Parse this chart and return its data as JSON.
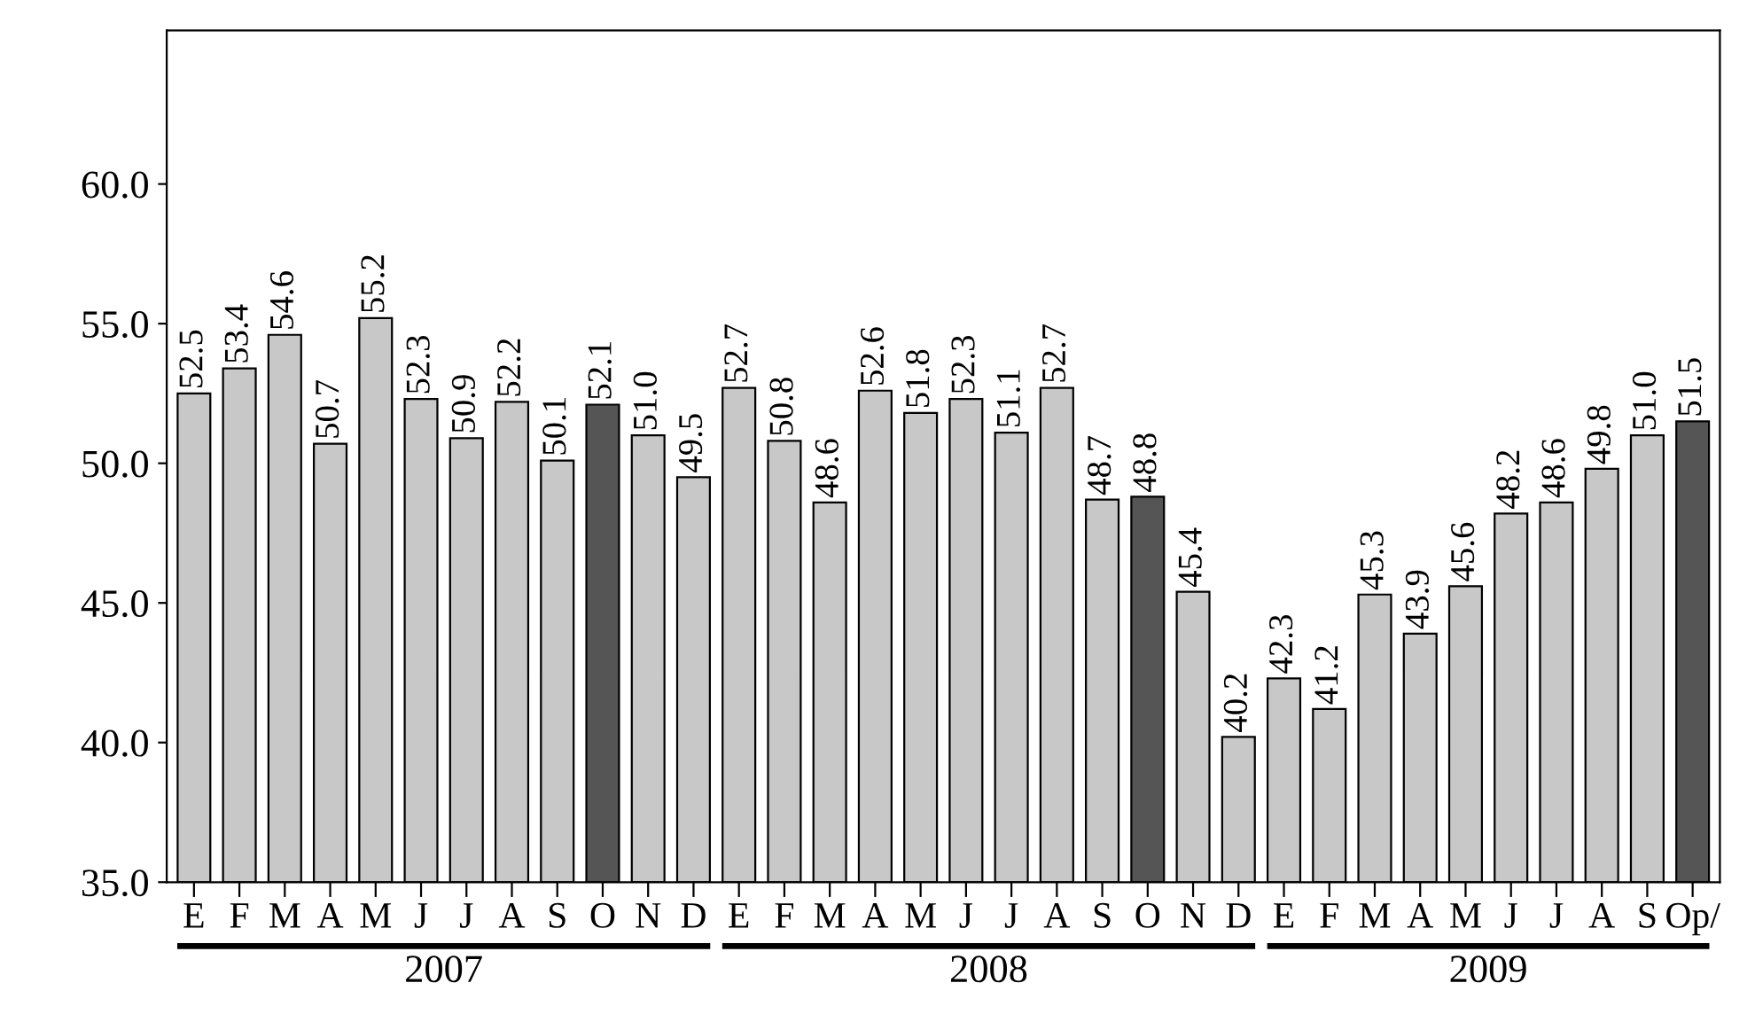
{
  "chart_data": {
    "type": "bar",
    "categories": [
      "E",
      "F",
      "M",
      "A",
      "M",
      "J",
      "J",
      "A",
      "S",
      "O",
      "N",
      "D",
      "E",
      "F",
      "M",
      "A",
      "M",
      "J",
      "J",
      "A",
      "S",
      "O",
      "N",
      "D",
      "E",
      "F",
      "M",
      "A",
      "M",
      "J",
      "J",
      "A",
      "S",
      "Op/"
    ],
    "values": [
      52.5,
      53.4,
      54.6,
      50.7,
      55.2,
      52.3,
      50.9,
      52.2,
      50.1,
      52.1,
      51.0,
      49.5,
      52.7,
      50.8,
      48.6,
      52.6,
      51.8,
      52.3,
      51.1,
      52.7,
      48.7,
      48.8,
      45.4,
      40.2,
      42.3,
      41.2,
      45.3,
      43.9,
      45.6,
      48.2,
      48.6,
      49.8,
      51.0,
      51.5
    ],
    "colors": [
      "#c8c8c8",
      "#c8c8c8",
      "#c8c8c8",
      "#c8c8c8",
      "#c8c8c8",
      "#c8c8c8",
      "#c8c8c8",
      "#c8c8c8",
      "#c8c8c8",
      "#555555",
      "#c8c8c8",
      "#c8c8c8",
      "#c8c8c8",
      "#c8c8c8",
      "#c8c8c8",
      "#c8c8c8",
      "#c8c8c8",
      "#c8c8c8",
      "#c8c8c8",
      "#c8c8c8",
      "#c8c8c8",
      "#555555",
      "#c8c8c8",
      "#c8c8c8",
      "#c8c8c8",
      "#c8c8c8",
      "#c8c8c8",
      "#c8c8c8",
      "#c8c8c8",
      "#c8c8c8",
      "#c8c8c8",
      "#c8c8c8",
      "#c8c8c8",
      "#555555"
    ],
    "ylim": [
      35,
      65.5
    ],
    "yticks": [
      {
        "value": 35,
        "label": "35.0"
      },
      {
        "value": 40,
        "label": "40.0"
      },
      {
        "value": 45,
        "label": "45.0"
      },
      {
        "value": 50,
        "label": "50.0"
      },
      {
        "value": 55,
        "label": "55.0"
      },
      {
        "value": 60,
        "label": "60.0"
      }
    ],
    "value_labels": [
      "52.5",
      "53.4",
      "54.6",
      "50.7",
      "55.2",
      "52.3",
      "50.9",
      "52.2",
      "50.1",
      "52.1",
      "51.0",
      "49.5",
      "52.7",
      "50.8",
      "48.6",
      "52.6",
      "51.8",
      "52.3",
      "51.1",
      "52.7",
      "48.7",
      "48.8",
      "45.4",
      "40.2",
      "42.3",
      "41.2",
      "45.3",
      "43.9",
      "45.6",
      "48.2",
      "48.6",
      "49.8",
      "51.0",
      "51.5"
    ],
    "grid": false,
    "legend": false,
    "annotations": [
      "2007",
      "2008",
      "2009"
    ]
  }
}
